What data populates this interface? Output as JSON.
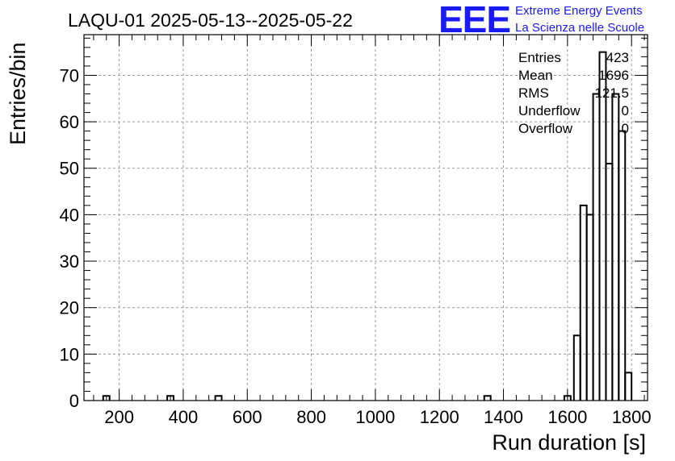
{
  "chart_data": {
    "type": "bar",
    "title": "LAQU-01 2025-05-13--2025-05-22",
    "xlabel": "Run duration [s]",
    "ylabel": "Entries/bin",
    "xlim": [
      90,
      1850
    ],
    "ylim": [
      0,
      78.75
    ],
    "bin_width": 20,
    "x_ticks": [
      200,
      400,
      600,
      800,
      1000,
      1200,
      1400,
      1600,
      1800
    ],
    "y_ticks": [
      0,
      10,
      20,
      30,
      40,
      50,
      60,
      70
    ],
    "grid": true,
    "bins": [
      {
        "x": 150,
        "y": 1
      },
      {
        "x": 350,
        "y": 1
      },
      {
        "x": 500,
        "y": 1
      },
      {
        "x": 1340,
        "y": 1
      },
      {
        "x": 1590,
        "y": 1
      },
      {
        "x": 1620,
        "y": 14
      },
      {
        "x": 1640,
        "y": 42
      },
      {
        "x": 1660,
        "y": 40
      },
      {
        "x": 1680,
        "y": 66
      },
      {
        "x": 1700,
        "y": 75
      },
      {
        "x": 1720,
        "y": 51
      },
      {
        "x": 1740,
        "y": 66
      },
      {
        "x": 1760,
        "y": 58
      },
      {
        "x": 1780,
        "y": 6
      }
    ],
    "stats": [
      {
        "label": "Entries",
        "value": "423"
      },
      {
        "label": "Mean",
        "value": "1696"
      },
      {
        "label": "RMS",
        "value": "121.5"
      },
      {
        "label": "Underflow",
        "value": "0"
      },
      {
        "label": "Overflow",
        "value": "0"
      }
    ]
  },
  "brand": {
    "logo": "EEE",
    "line1": "Extreme Energy Events",
    "line2": "La Scienza nelle Scuole"
  }
}
